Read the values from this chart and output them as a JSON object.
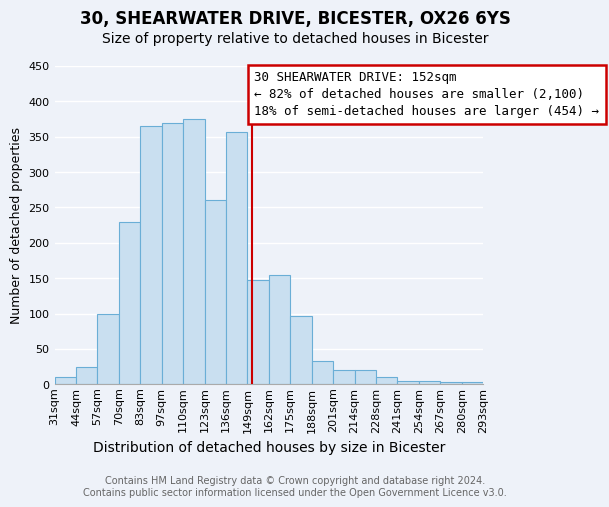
{
  "title": "30, SHEARWATER DRIVE, BICESTER, OX26 6YS",
  "subtitle": "Size of property relative to detached houses in Bicester",
  "xlabel": "Distribution of detached houses by size in Bicester",
  "ylabel": "Number of detached properties",
  "bar_labels": [
    "31sqm",
    "44sqm",
    "57sqm",
    "70sqm",
    "83sqm",
    "97sqm",
    "110sqm",
    "123sqm",
    "136sqm",
    "149sqm",
    "162sqm",
    "175sqm",
    "188sqm",
    "201sqm",
    "214sqm",
    "228sqm",
    "241sqm",
    "254sqm",
    "267sqm",
    "280sqm",
    "293sqm"
  ],
  "bar_heights": [
    10,
    25,
    100,
    230,
    365,
    370,
    375,
    260,
    357,
    148,
    155,
    96,
    33,
    20,
    20,
    10,
    5,
    5,
    3,
    3
  ],
  "bar_color": "#c9dff0",
  "bar_edge_color": "#6aaed6",
  "annotation_box_text": "30 SHEARWATER DRIVE: 152sqm\n← 82% of detached houses are smaller (2,100)\n18% of semi-detached houses are larger (454) →",
  "annotation_box_color": "#ffffff",
  "annotation_box_edge_color": "#cc0000",
  "vline_color": "#cc0000",
  "footer_line1": "Contains HM Land Registry data © Crown copyright and database right 2024.",
  "footer_line2": "Contains public sector information licensed under the Open Government Licence v3.0.",
  "ylim": [
    0,
    450
  ],
  "yticks": [
    0,
    50,
    100,
    150,
    200,
    250,
    300,
    350,
    400,
    450
  ],
  "background_color": "#eef2f9",
  "grid_color": "#ffffff",
  "title_fontsize": 12,
  "subtitle_fontsize": 10,
  "ylabel_fontsize": 9,
  "xlabel_fontsize": 10,
  "tick_fontsize": 8,
  "footer_fontsize": 7,
  "annotation_fontsize": 9,
  "vline_x_bin": 9,
  "vline_x_offset": 0.23
}
